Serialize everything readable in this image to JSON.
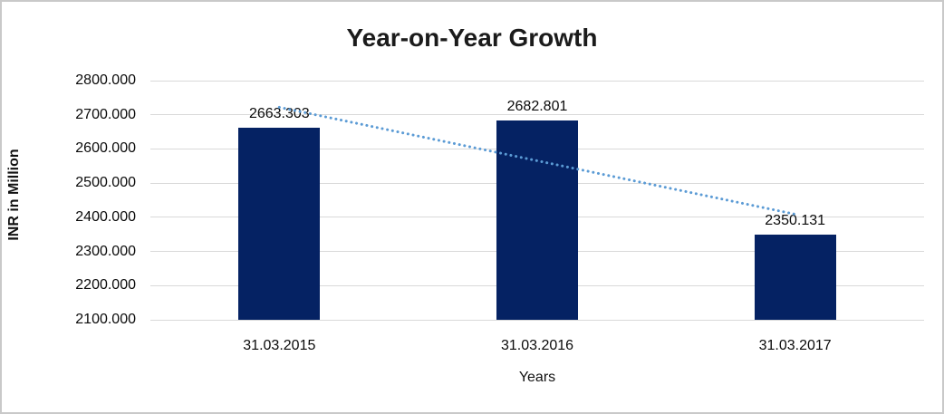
{
  "chart_data": {
    "type": "bar",
    "title": "Year-on-Year Growth",
    "xlabel": "Years",
    "ylabel": "INR in Million",
    "categories": [
      "31.03.2015",
      "31.03.2016",
      "31.03.2017"
    ],
    "values": [
      2663.303,
      2682.801,
      2350.131
    ],
    "data_labels": [
      "2663.303",
      "2682.801",
      "2350.131"
    ],
    "ylim": [
      2100,
      2800
    ],
    "ytick_step": 100,
    "ytick_decimals": 3,
    "ytick_labels": [
      "2100.000",
      "2200.000",
      "2300.000",
      "2400.000",
      "2500.000",
      "2600.000",
      "2700.000",
      "2800.000"
    ],
    "grid": true,
    "legend": "none",
    "bar_color": "#052263",
    "gridline_color": "#d9d9d9",
    "trendline": {
      "type": "linear",
      "style": "dotted",
      "color": "#5b9bd5",
      "start_value": 2722,
      "end_value": 2409
    }
  }
}
